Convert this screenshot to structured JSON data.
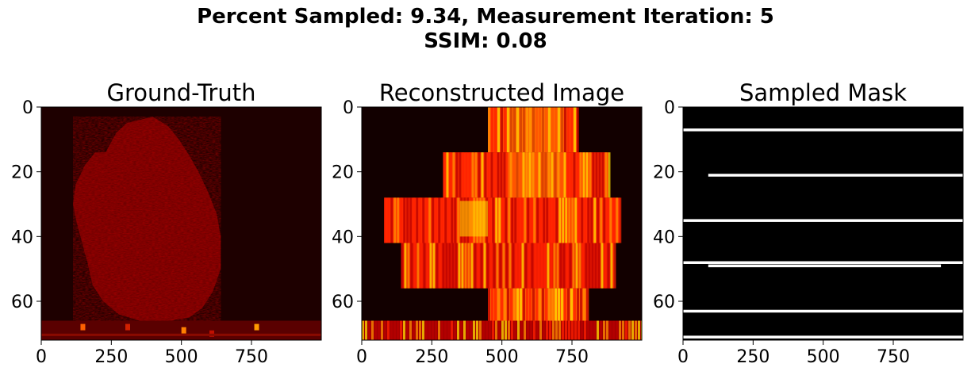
{
  "figure": {
    "title_line1": "Percent Sampled: 9.34, Measurement Iteration: 5",
    "title_line2": "SSIM: 0.08"
  },
  "chart_data": [
    {
      "type": "heatmap",
      "title": "Ground-Truth",
      "colormap": "hot",
      "xlim": [
        0,
        999
      ],
      "ylim": [
        72,
        0
      ],
      "x_ticks": [
        "0",
        "250",
        "500",
        "750"
      ],
      "x_tick_values": [
        0,
        250,
        500,
        750
      ],
      "y_ticks": [
        "0",
        "20",
        "40",
        "60"
      ],
      "y_tick_values": [
        0,
        20,
        40,
        60
      ],
      "grid": false,
      "content": "dark-red noisy blob spanning roughly x 80-900, y 3-66, bright streaks near y 66-71"
    },
    {
      "type": "heatmap",
      "title": "Reconstructed Image",
      "colormap": "hot",
      "xlim": [
        0,
        999
      ],
      "ylim": [
        72,
        0
      ],
      "x_ticks": [
        "0",
        "250",
        "500",
        "750"
      ],
      "x_tick_values": [
        0,
        250,
        500,
        750
      ],
      "y_ticks": [
        "0",
        "20",
        "40",
        "60"
      ],
      "y_tick_values": [
        0,
        20,
        40,
        60
      ],
      "grid": false,
      "content": "vertically streaked red-orange-yellow block structure, brightest around x 400-750"
    },
    {
      "type": "heatmap",
      "title": "Sampled Mask",
      "colormap": "gray",
      "xlim": [
        0,
        999
      ],
      "ylim": [
        72,
        0
      ],
      "x_ticks": [
        "0",
        "250",
        "500",
        "750"
      ],
      "x_tick_values": [
        0,
        250,
        500,
        750
      ],
      "y_ticks": [
        "0",
        "20",
        "40",
        "60"
      ],
      "y_tick_values": [
        0,
        20,
        40,
        60
      ],
      "grid": false,
      "sampled_lines": [
        {
          "row": 7,
          "x_start": 0,
          "x_end": 999
        },
        {
          "row": 21,
          "x_start": 90,
          "x_end": 999
        },
        {
          "row": 35,
          "x_start": 0,
          "x_end": 999
        },
        {
          "row": 48,
          "x_start": 0,
          "x_end": 999
        },
        {
          "row": 49,
          "x_start": 90,
          "x_end": 920
        },
        {
          "row": 63,
          "x_start": 0,
          "x_end": 999
        },
        {
          "row": 71,
          "x_start": 0,
          "x_end": 999
        }
      ]
    }
  ]
}
